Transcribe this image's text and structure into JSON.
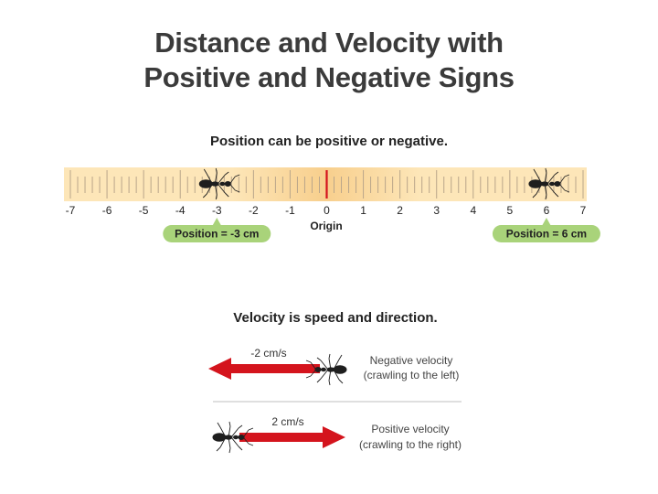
{
  "title_line1": "Distance and Velocity with",
  "title_line2": "Positive and Negative Signs",
  "position_section": {
    "heading": "Position can be positive or negative.",
    "ruler": {
      "min": -7,
      "max": 7,
      "origin_label": "Origin"
    },
    "markers": [
      {
        "name": "negative",
        "position": -3,
        "label": "Position = -3 cm"
      },
      {
        "name": "positive",
        "position": 6,
        "label": "Position = 6 cm"
      }
    ]
  },
  "velocity_section": {
    "heading": "Velocity is speed and direction.",
    "negative": {
      "speed": "-2 cm/s",
      "desc_line1": "Negative velocity",
      "desc_line2": "(crawling to the left)"
    },
    "positive": {
      "speed": "2 cm/s",
      "desc_line1": "Positive velocity",
      "desc_line2": "(crawling to the right)"
    }
  },
  "colors": {
    "ruler_light": "#fde6b8",
    "ruler_center": "#f8cf8d",
    "ruler_tick": "#b9a58a",
    "origin_line": "#d4141d",
    "pill": "#a9d37a",
    "arrow": "#d4141d",
    "ant": "#1e1e1e"
  }
}
